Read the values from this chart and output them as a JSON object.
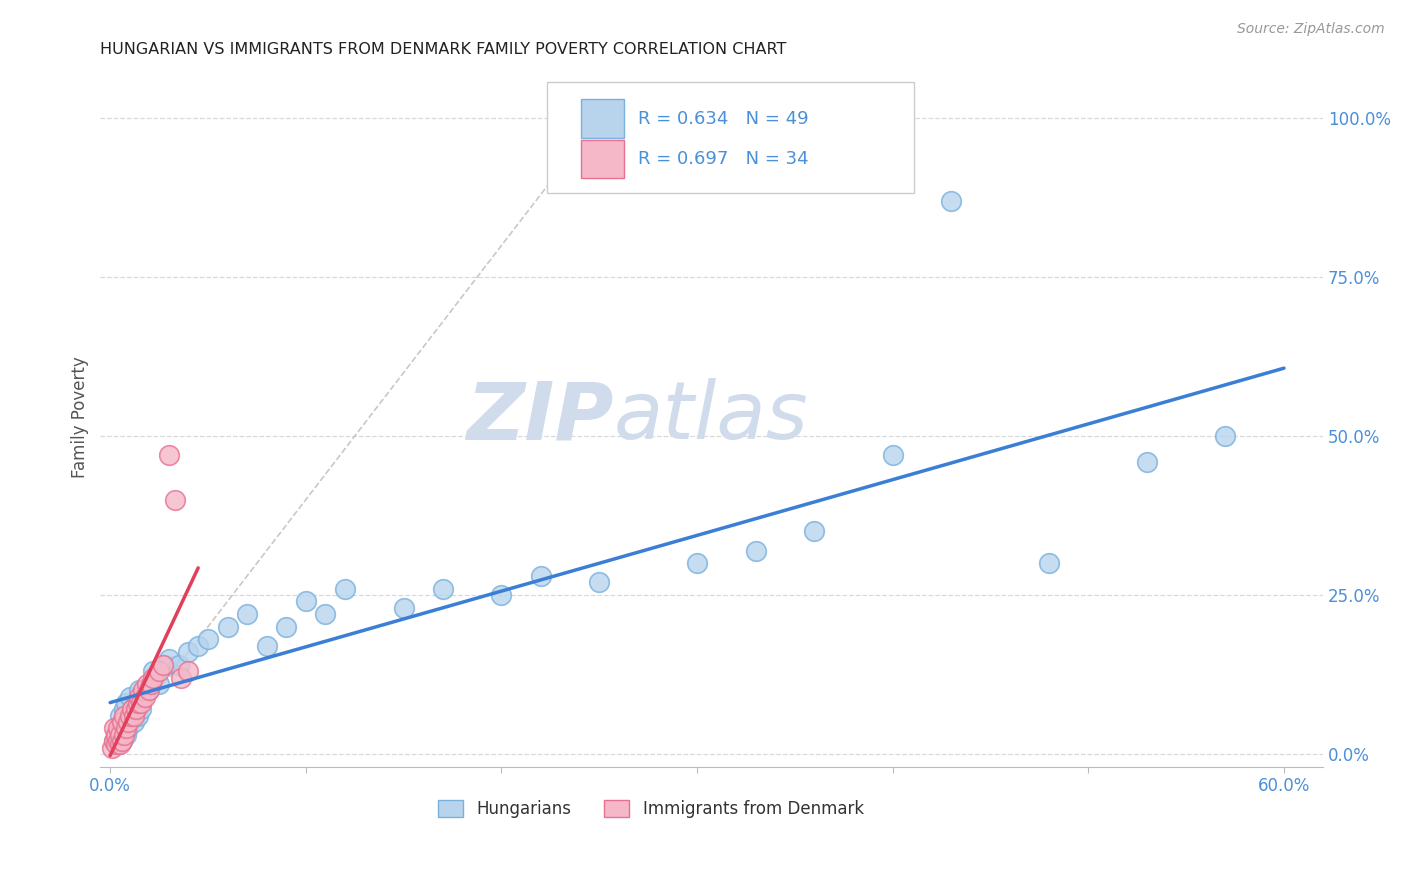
{
  "title": "HUNGARIAN VS IMMIGRANTS FROM DENMARK FAMILY POVERTY CORRELATION CHART",
  "source": "Source: ZipAtlas.com",
  "ylabel": "Family Poverty",
  "xlim": [
    -0.005,
    0.62
  ],
  "ylim": [
    -0.02,
    1.08
  ],
  "xticks": [
    0.0,
    0.1,
    0.2,
    0.3,
    0.4,
    0.5,
    0.6
  ],
  "xtick_labels": [
    "0.0%",
    "",
    "",
    "",
    "",
    "",
    "60.0%"
  ],
  "ytick_labels": [
    "0.0%",
    "25.0%",
    "50.0%",
    "75.0%",
    "100.0%"
  ],
  "yticks": [
    0.0,
    0.25,
    0.5,
    0.75,
    1.0
  ],
  "blue_color": "#b8d4ed",
  "pink_color": "#f5b8c8",
  "blue_edge_color": "#7ab0dc",
  "pink_edge_color": "#e87090",
  "blue_line_color": "#3a7fd5",
  "pink_line_color": "#e0405a",
  "title_color": "#222222",
  "axis_label_color": "#555555",
  "tick_color": "#4a90d9",
  "grid_color": "#d0d0d0",
  "watermark_color": "#d0dcec",
  "hun_x": [
    0.002,
    0.003,
    0.004,
    0.005,
    0.005,
    0.006,
    0.007,
    0.007,
    0.008,
    0.008,
    0.009,
    0.01,
    0.01,
    0.011,
    0.012,
    0.013,
    0.014,
    0.015,
    0.016,
    0.017,
    0.02,
    0.022,
    0.025,
    0.028,
    0.03,
    0.035,
    0.04,
    0.045,
    0.05,
    0.06,
    0.07,
    0.08,
    0.09,
    0.1,
    0.11,
    0.12,
    0.15,
    0.17,
    0.2,
    0.22,
    0.25,
    0.3,
    0.33,
    0.36,
    0.4,
    0.43,
    0.48,
    0.53,
    0.57
  ],
  "hun_y": [
    0.02,
    0.03,
    0.015,
    0.04,
    0.06,
    0.02,
    0.05,
    0.07,
    0.03,
    0.08,
    0.04,
    0.06,
    0.09,
    0.07,
    0.05,
    0.08,
    0.06,
    0.1,
    0.07,
    0.09,
    0.1,
    0.13,
    0.11,
    0.14,
    0.15,
    0.14,
    0.16,
    0.17,
    0.18,
    0.2,
    0.22,
    0.17,
    0.2,
    0.24,
    0.22,
    0.26,
    0.23,
    0.26,
    0.25,
    0.28,
    0.27,
    0.3,
    0.32,
    0.35,
    0.47,
    0.87,
    0.3,
    0.46,
    0.5
  ],
  "den_x": [
    0.001,
    0.002,
    0.002,
    0.003,
    0.003,
    0.004,
    0.004,
    0.005,
    0.005,
    0.006,
    0.006,
    0.007,
    0.007,
    0.008,
    0.009,
    0.01,
    0.011,
    0.012,
    0.013,
    0.014,
    0.015,
    0.016,
    0.017,
    0.018,
    0.019,
    0.02,
    0.021,
    0.022,
    0.025,
    0.027,
    0.03,
    0.033,
    0.036,
    0.04
  ],
  "den_y": [
    0.01,
    0.02,
    0.04,
    0.015,
    0.03,
    0.02,
    0.04,
    0.015,
    0.03,
    0.02,
    0.05,
    0.03,
    0.06,
    0.04,
    0.05,
    0.06,
    0.07,
    0.06,
    0.07,
    0.08,
    0.09,
    0.08,
    0.1,
    0.09,
    0.11,
    0.1,
    0.11,
    0.12,
    0.13,
    0.14,
    0.47,
    0.4,
    0.12,
    0.13
  ]
}
